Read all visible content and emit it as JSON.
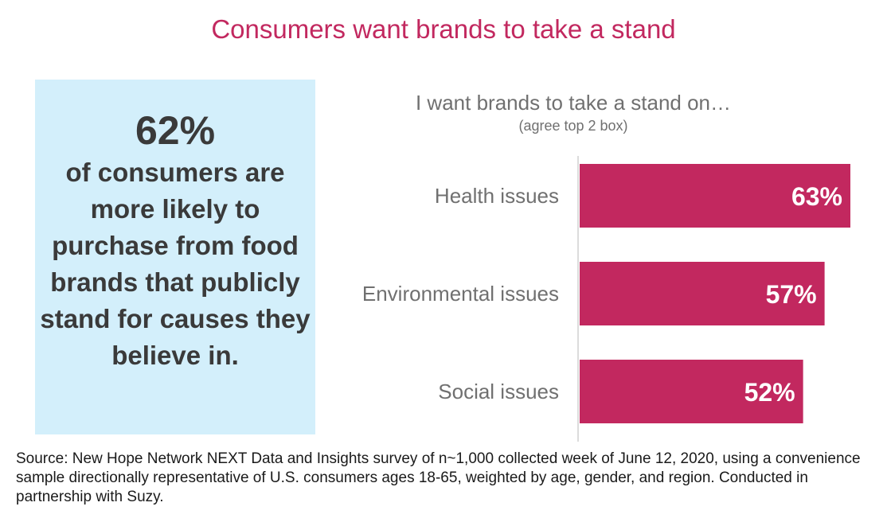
{
  "title": "Consumers want brands to take a stand",
  "stat_box": {
    "number": "62%",
    "text": "of consumers are more likely to purchase from food brands that publicly stand for causes they believe in."
  },
  "chart_data": {
    "type": "bar",
    "orientation": "horizontal",
    "title": "I want brands to take a stand on…",
    "subtitle": "(agree top 2 box)",
    "categories": [
      "Health issues",
      "Environmental issues",
      "Social issues"
    ],
    "values": [
      63,
      57,
      52
    ],
    "value_labels": [
      "63%",
      "57%",
      "52%"
    ],
    "bar_color": "#c2285f",
    "grid": false
  },
  "source": "Source: New Hope Network NEXT Data and Insights survey of n~1,000 collected week of June 12, 2020, using a convenience sample directionally representative of U.S. consumers ages 18-65, weighted by age, gender, and region. Conducted in partnership with Suzy."
}
